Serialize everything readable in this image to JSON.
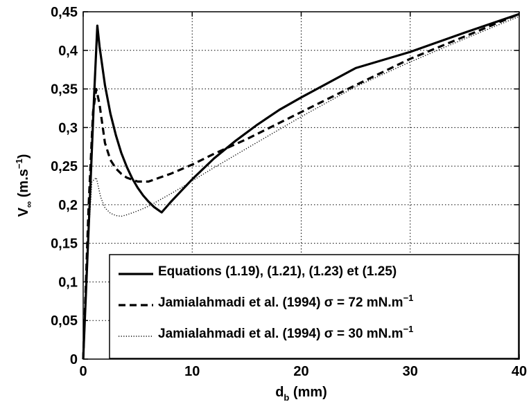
{
  "chart_data": {
    "type": "line",
    "xlabel": {
      "main": "d",
      "sub": "b",
      "unit": " (mm)"
    },
    "ylabel": {
      "main": "V",
      "sub": "∞",
      "unit_open": " (m.s",
      "sup": "−1",
      "unit_close": ")"
    },
    "xlim": [
      0,
      40
    ],
    "ylim": [
      0,
      0.45
    ],
    "xticks": [
      0,
      10,
      20,
      30,
      40
    ],
    "xtick_labels": [
      "0",
      "10",
      "20",
      "30",
      "40"
    ],
    "yticks": [
      0,
      0.05,
      0.1,
      0.15,
      0.2,
      0.25,
      0.3,
      0.35,
      0.4,
      0.45
    ],
    "ytick_labels": [
      "0",
      "0,05",
      "0,1",
      "0,15",
      "0,2",
      "0,25",
      "0,3",
      "0,35",
      "0,4",
      "0,45"
    ],
    "grid": true,
    "legend_position": "bottom-right",
    "series": [
      {
        "name": "Equations (1.19), (1.21), (1.23) et (1.25)",
        "style": "solid",
        "x": [
          0,
          0.5,
          1.0,
          1.3,
          1.5,
          2.0,
          2.5,
          3.0,
          3.5,
          4.0,
          4.5,
          5.0,
          5.5,
          6.0,
          6.5,
          7.0,
          7.2,
          8.0,
          9.0,
          10.0,
          12.0,
          14.0,
          16.0,
          18.0,
          20.0,
          25.0,
          30.0,
          35.0,
          40.0
        ],
        "y": [
          0,
          0.17,
          0.34,
          0.432,
          0.405,
          0.355,
          0.318,
          0.29,
          0.267,
          0.249,
          0.234,
          0.222,
          0.212,
          0.204,
          0.197,
          0.192,
          0.19,
          0.203,
          0.218,
          0.233,
          0.26,
          0.283,
          0.304,
          0.323,
          0.339,
          0.377,
          0.398,
          0.423,
          0.447
        ]
      },
      {
        "name": "Jamialahmadi et al. (1994) σ = 72 mN.m",
        "name_sup": "−1",
        "style": "dashed",
        "x": [
          0,
          0.5,
          0.9,
          1.2,
          1.5,
          2.0,
          2.5,
          3.0,
          3.5,
          4.0,
          5.0,
          6.0,
          7.0,
          8.0,
          10.0,
          12.0,
          15.0,
          20.0,
          25.0,
          30.0,
          35.0,
          40.0
        ],
        "y": [
          0,
          0.2,
          0.32,
          0.35,
          0.33,
          0.28,
          0.258,
          0.247,
          0.24,
          0.235,
          0.23,
          0.23,
          0.235,
          0.24,
          0.252,
          0.266,
          0.285,
          0.32,
          0.355,
          0.389,
          0.418,
          0.447
        ]
      },
      {
        "name": "Jamialahmadi et al. (1994) σ = 30 mN.m",
        "name_sup": "−1",
        "style": "dotted",
        "x": [
          0,
          0.4,
          0.8,
          1.2,
          1.6,
          2.0,
          2.5,
          3.0,
          3.5,
          4.0,
          5.0,
          6.0,
          7.0,
          8.0,
          9.0,
          10.0,
          12.0,
          15.0,
          20.0,
          25.0,
          30.0,
          35.0,
          40.0
        ],
        "y": [
          0,
          0.14,
          0.23,
          0.235,
          0.21,
          0.196,
          0.189,
          0.186,
          0.185,
          0.187,
          0.192,
          0.198,
          0.206,
          0.214,
          0.222,
          0.231,
          0.248,
          0.273,
          0.314,
          0.353,
          0.385,
          0.415,
          0.444
        ]
      }
    ]
  }
}
